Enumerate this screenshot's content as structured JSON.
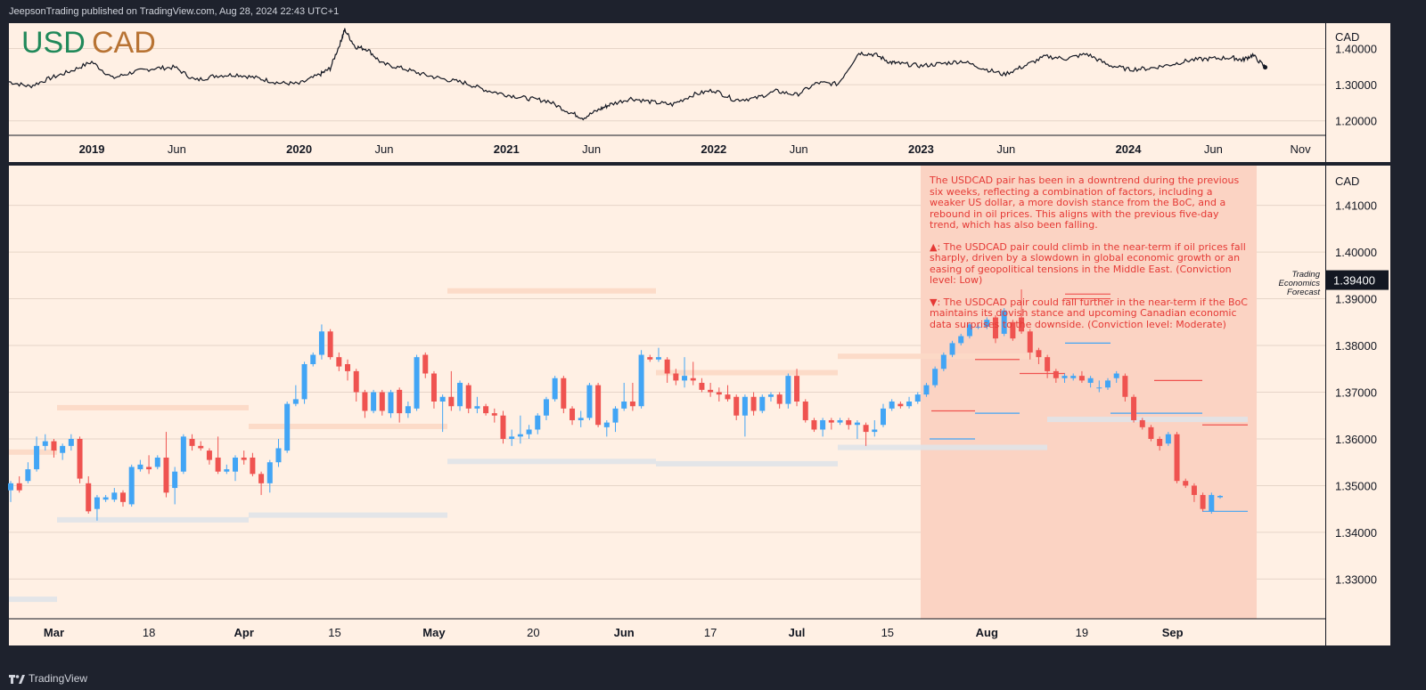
{
  "header": {
    "published_text": "JeepsonTrading published on TradingView.com, Aug 28, 2024 22:43 UTC+1"
  },
  "footer": {
    "brand": "TradingView"
  },
  "colors": {
    "panel_bg": "#fff0e4",
    "up": "#42a5f5",
    "down": "#ef5350",
    "accent_green": "#21895a",
    "accent_brown": "#b87333",
    "forecast_zone": "#fbd3c3",
    "note_text": "#e53935"
  },
  "chart_data": [
    {
      "type": "line",
      "title": "USD CAD",
      "title_parts": [
        "USD",
        "CAD"
      ],
      "currency_label": "CAD",
      "x_tick_labels": [
        "2019",
        "Jun",
        "2020",
        "Jun",
        "2021",
        "Jun",
        "2022",
        "Jun",
        "2023",
        "Jun",
        "2024",
        "Jun",
        "Nov"
      ],
      "y_tick_labels": [
        "1.40000",
        "1.30000",
        "1.20000"
      ],
      "ylim": [
        1.16,
        1.47
      ],
      "x": [
        2018.6,
        2018.7,
        2018.8,
        2018.9,
        2019.0,
        2019.1,
        2019.2,
        2019.3,
        2019.4,
        2019.5,
        2019.6,
        2019.7,
        2019.8,
        2019.9,
        2020.0,
        2020.1,
        2020.15,
        2020.2,
        2020.22,
        2020.27,
        2020.33,
        2020.4,
        2020.5,
        2020.6,
        2020.7,
        2020.8,
        2020.9,
        2021.0,
        2021.1,
        2021.2,
        2021.3,
        2021.37,
        2021.45,
        2021.5,
        2021.6,
        2021.7,
        2021.8,
        2021.9,
        2022.0,
        2022.1,
        2022.2,
        2022.3,
        2022.4,
        2022.5,
        2022.6,
        2022.7,
        2022.78,
        2022.85,
        2022.9,
        2023.0,
        2023.1,
        2023.2,
        2023.3,
        2023.4,
        2023.5,
        2023.6,
        2023.7,
        2023.8,
        2023.9,
        2024.0,
        2024.1,
        2024.2,
        2024.3,
        2024.4,
        2024.5,
        2024.55,
        2024.6,
        2024.66
      ],
      "values": [
        1.308,
        1.295,
        1.318,
        1.338,
        1.363,
        1.318,
        1.335,
        1.345,
        1.348,
        1.312,
        1.325,
        1.328,
        1.318,
        1.305,
        1.302,
        1.328,
        1.345,
        1.418,
        1.452,
        1.405,
        1.398,
        1.358,
        1.345,
        1.328,
        1.315,
        1.305,
        1.285,
        1.272,
        1.262,
        1.255,
        1.225,
        1.208,
        1.232,
        1.245,
        1.262,
        1.252,
        1.245,
        1.272,
        1.285,
        1.258,
        1.262,
        1.282,
        1.272,
        1.305,
        1.302,
        1.388,
        1.383,
        1.362,
        1.358,
        1.352,
        1.358,
        1.365,
        1.345,
        1.328,
        1.352,
        1.378,
        1.372,
        1.385,
        1.355,
        1.342,
        1.345,
        1.355,
        1.368,
        1.372,
        1.375,
        1.368,
        1.382,
        1.348
      ]
    },
    {
      "type": "candlestick",
      "currency_label": "CAD",
      "forecast_label": [
        "Trading",
        "Economics",
        "Forecast"
      ],
      "current_price_label": "1.39400",
      "current_price": 1.394,
      "x_tick_labels": [
        "Mar",
        "18",
        "Apr",
        "15",
        "May",
        "20",
        "Jun",
        "17",
        "Jul",
        "15",
        "Aug",
        "19",
        "Sep"
      ],
      "y_tick_labels": [
        "1.41000",
        "1.40000",
        "1.39000",
        "1.38000",
        "1.37000",
        "1.36000",
        "1.35000",
        "1.34000",
        "1.33000"
      ],
      "ylim": [
        1.3215,
        1.4185
      ],
      "candles": [
        [
          1.349,
          1.3505,
          1.3465,
          1.351
        ],
        [
          1.3505,
          1.349,
          1.3485,
          1.352
        ],
        [
          1.351,
          1.3535,
          1.3505,
          1.355
        ],
        [
          1.3535,
          1.3585,
          1.353,
          1.3605
        ],
        [
          1.3585,
          1.3595,
          1.3575,
          1.361
        ],
        [
          1.3595,
          1.3575,
          1.356,
          1.36
        ],
        [
          1.357,
          1.3585,
          1.3555,
          1.359
        ],
        [
          1.3585,
          1.36,
          1.3575,
          1.361
        ],
        [
          1.36,
          1.3515,
          1.3505,
          1.3605
        ],
        [
          1.3505,
          1.3445,
          1.344,
          1.352
        ],
        [
          1.345,
          1.3475,
          1.3425,
          1.348
        ],
        [
          1.347,
          1.3475,
          1.3465,
          1.348
        ],
        [
          1.347,
          1.3485,
          1.3465,
          1.3495
        ],
        [
          1.3485,
          1.3465,
          1.3455,
          1.349
        ],
        [
          1.346,
          1.354,
          1.3455,
          1.3545
        ],
        [
          1.3535,
          1.3545,
          1.353,
          1.3555
        ],
        [
          1.354,
          1.3535,
          1.3525,
          1.3565
        ],
        [
          1.354,
          1.356,
          1.3535,
          1.3565
        ],
        [
          1.356,
          1.3485,
          1.3475,
          1.3615
        ],
        [
          1.3495,
          1.353,
          1.346,
          1.354
        ],
        [
          1.353,
          1.3605,
          1.3525,
          1.361
        ],
        [
          1.36,
          1.3585,
          1.3575,
          1.361
        ],
        [
          1.3585,
          1.358,
          1.3575,
          1.3595
        ],
        [
          1.3575,
          1.3555,
          1.3545,
          1.358
        ],
        [
          1.356,
          1.353,
          1.3525,
          1.3605
        ],
        [
          1.353,
          1.3535,
          1.3525,
          1.3545
        ],
        [
          1.353,
          1.356,
          1.351,
          1.3565
        ],
        [
          1.356,
          1.3555,
          1.3545,
          1.3575
        ],
        [
          1.356,
          1.3525,
          1.352,
          1.357
        ],
        [
          1.3525,
          1.3505,
          1.348,
          1.353
        ],
        [
          1.3505,
          1.355,
          1.3485,
          1.3555
        ],
        [
          1.355,
          1.358,
          1.354,
          1.36
        ],
        [
          1.3575,
          1.3675,
          1.357,
          1.368
        ],
        [
          1.3675,
          1.3685,
          1.367,
          1.3715
        ],
        [
          1.3685,
          1.376,
          1.3675,
          1.3765
        ],
        [
          1.376,
          1.378,
          1.3755,
          1.3785
        ],
        [
          1.378,
          1.383,
          1.377,
          1.3845
        ],
        [
          1.383,
          1.3775,
          1.377,
          1.3835
        ],
        [
          1.3775,
          1.3755,
          1.3745,
          1.3785
        ],
        [
          1.376,
          1.3745,
          1.3725,
          1.377
        ],
        [
          1.3745,
          1.37,
          1.368,
          1.375
        ],
        [
          1.37,
          1.366,
          1.3645,
          1.3705
        ],
        [
          1.366,
          1.37,
          1.3655,
          1.3705
        ],
        [
          1.37,
          1.366,
          1.365,
          1.3705
        ],
        [
          1.3655,
          1.37,
          1.3645,
          1.3705
        ],
        [
          1.3705,
          1.3655,
          1.3635,
          1.371
        ],
        [
          1.3655,
          1.367,
          1.3645,
          1.368
        ],
        [
          1.3665,
          1.3775,
          1.366,
          1.378
        ],
        [
          1.378,
          1.374,
          1.373,
          1.3785
        ],
        [
          1.374,
          1.368,
          1.3665,
          1.3745
        ],
        [
          1.368,
          1.369,
          1.3615,
          1.3695
        ],
        [
          1.369,
          1.367,
          1.366,
          1.3745
        ],
        [
          1.367,
          1.372,
          1.366,
          1.3725
        ],
        [
          1.3715,
          1.3665,
          1.3655,
          1.372
        ],
        [
          1.3665,
          1.367,
          1.3655,
          1.369
        ],
        [
          1.367,
          1.3655,
          1.365,
          1.3675
        ],
        [
          1.3655,
          1.365,
          1.3635,
          1.3665
        ],
        [
          1.365,
          1.36,
          1.359,
          1.366
        ],
        [
          1.36,
          1.3605,
          1.3585,
          1.362
        ],
        [
          1.3605,
          1.361,
          1.359,
          1.365
        ],
        [
          1.361,
          1.362,
          1.36,
          1.363
        ],
        [
          1.362,
          1.365,
          1.361,
          1.3655
        ],
        [
          1.365,
          1.3685,
          1.364,
          1.369
        ],
        [
          1.3685,
          1.373,
          1.368,
          1.3735
        ],
        [
          1.373,
          1.3665,
          1.3655,
          1.3735
        ],
        [
          1.3665,
          1.364,
          1.363,
          1.367
        ],
        [
          1.364,
          1.3645,
          1.3625,
          1.366
        ],
        [
          1.3645,
          1.3715,
          1.364,
          1.372
        ],
        [
          1.3715,
          1.363,
          1.3625,
          1.372
        ],
        [
          1.3625,
          1.3635,
          1.3605,
          1.364
        ],
        [
          1.3635,
          1.3665,
          1.3615,
          1.367
        ],
        [
          1.3665,
          1.368,
          1.366,
          1.372
        ],
        [
          1.368,
          1.367,
          1.366,
          1.372
        ],
        [
          1.367,
          1.378,
          1.3665,
          1.379
        ],
        [
          1.3775,
          1.377,
          1.3765,
          1.378
        ],
        [
          1.377,
          1.3775,
          1.3765,
          1.3795
        ],
        [
          1.377,
          1.374,
          1.372,
          1.3775
        ],
        [
          1.374,
          1.3725,
          1.3715,
          1.375
        ],
        [
          1.3725,
          1.3735,
          1.371,
          1.3775
        ],
        [
          1.373,
          1.3725,
          1.3715,
          1.3765
        ],
        [
          1.372,
          1.3705,
          1.37,
          1.373
        ],
        [
          1.3705,
          1.37,
          1.369,
          1.372
        ],
        [
          1.37,
          1.3695,
          1.368,
          1.371
        ],
        [
          1.3695,
          1.3685,
          1.368,
          1.3715
        ],
        [
          1.369,
          1.365,
          1.364,
          1.3695
        ],
        [
          1.365,
          1.369,
          1.3605,
          1.3695
        ],
        [
          1.369,
          1.366,
          1.365,
          1.37
        ],
        [
          1.366,
          1.369,
          1.3655,
          1.3695
        ],
        [
          1.369,
          1.3695,
          1.368,
          1.37
        ],
        [
          1.3695,
          1.3675,
          1.3665,
          1.37
        ],
        [
          1.3675,
          1.3735,
          1.3665,
          1.374
        ],
        [
          1.3735,
          1.368,
          1.367,
          1.375
        ],
        [
          1.368,
          1.364,
          1.3635,
          1.3685
        ],
        [
          1.364,
          1.362,
          1.3615,
          1.3645
        ],
        [
          1.362,
          1.364,
          1.3605,
          1.3645
        ],
        [
          1.364,
          1.3635,
          1.362,
          1.3645
        ],
        [
          1.3635,
          1.364,
          1.363,
          1.3645
        ],
        [
          1.364,
          1.363,
          1.362,
          1.3645
        ],
        [
          1.363,
          1.3635,
          1.36,
          1.364
        ],
        [
          1.363,
          1.3615,
          1.3585,
          1.3635
        ],
        [
          1.3615,
          1.362,
          1.3605,
          1.364
        ],
        [
          1.363,
          1.3665,
          1.3625,
          1.3675
        ],
        [
          1.3665,
          1.368,
          1.366,
          1.3685
        ],
        [
          1.3675,
          1.367,
          1.3665,
          1.368
        ],
        [
          1.367,
          1.368,
          1.3665,
          1.369
        ],
        [
          1.368,
          1.3695,
          1.3675,
          1.37
        ],
        [
          1.3695,
          1.3715,
          1.369,
          1.372
        ],
        [
          1.3715,
          1.375,
          1.371,
          1.3755
        ],
        [
          1.375,
          1.378,
          1.3745,
          1.3785
        ],
        [
          1.378,
          1.3805,
          1.3775,
          1.381
        ],
        [
          1.3805,
          1.382,
          1.38,
          1.3825
        ],
        [
          1.382,
          1.3845,
          1.3815,
          1.385
        ],
        [
          1.384,
          1.384,
          1.3835,
          1.3845
        ],
        [
          1.384,
          1.3855,
          1.3835,
          1.386
        ],
        [
          1.386,
          1.3815,
          1.3805,
          1.3865
        ],
        [
          1.3825,
          1.3875,
          1.382,
          1.388
        ],
        [
          1.385,
          1.3815,
          1.381,
          1.3855
        ],
        [
          1.386,
          1.383,
          1.3825,
          1.392
        ],
        [
          1.383,
          1.3785,
          1.377,
          1.3835
        ],
        [
          1.379,
          1.3775,
          1.376,
          1.3795
        ],
        [
          1.3775,
          1.3745,
          1.373,
          1.378
        ],
        [
          1.3745,
          1.373,
          1.372,
          1.375
        ],
        [
          1.373,
          1.3735,
          1.372,
          1.374
        ],
        [
          1.373,
          1.3735,
          1.3725,
          1.374
        ],
        [
          1.3735,
          1.3725,
          1.372,
          1.3745
        ],
        [
          1.372,
          1.373,
          1.371,
          1.3735
        ],
        [
          1.371,
          1.371,
          1.37,
          1.3725
        ],
        [
          1.371,
          1.3725,
          1.3705,
          1.373
        ],
        [
          1.373,
          1.374,
          1.372,
          1.3745
        ],
        [
          1.3735,
          1.369,
          1.368,
          1.374
        ],
        [
          1.369,
          1.364,
          1.3635,
          1.3695
        ],
        [
          1.364,
          1.3625,
          1.362,
          1.3645
        ],
        [
          1.3625,
          1.36,
          1.3595,
          1.363
        ],
        [
          1.36,
          1.3585,
          1.3575,
          1.3605
        ],
        [
          1.359,
          1.361,
          1.3585,
          1.3615
        ],
        [
          1.361,
          1.351,
          1.3505,
          1.3615
        ],
        [
          1.351,
          1.35,
          1.3495,
          1.3515
        ],
        [
          1.35,
          1.348,
          1.3465,
          1.3505
        ],
        [
          1.348,
          1.345,
          1.3445,
          1.3485
        ],
        [
          1.3445,
          1.348,
          1.344,
          1.3485
        ],
        [
          1.3475,
          1.3478,
          1.3472,
          1.348
        ]
      ],
      "gray_zones": [
        [
          1.34275,
          1.34325
        ],
        [
          1.34375,
          1.34425
        ],
        [
          1.35525,
          1.35575
        ],
        [
          1.35475,
          1.35525
        ],
        [
          1.35825,
          1.35875
        ],
        [
          1.36425,
          1.36475
        ],
        [
          1.32575,
          1.32625
        ]
      ],
      "salmon_zones": [
        [
          1.36675,
          1.36725
        ],
        [
          1.36275,
          1.36325
        ],
        [
          1.39175,
          1.39225
        ],
        [
          1.37425,
          1.37475
        ],
        [
          1.37775,
          1.37825
        ],
        [
          1.35725,
          1.35775
        ]
      ],
      "forecast_lines": [
        1.366,
        1.3655,
        1.36,
        1.374,
        1.377,
        1.3805,
        1.39,
        1.3725,
        1.3655,
        1.363,
        1.3445,
        1.391
      ],
      "forecast_line_colors": [
        "down",
        "up",
        "up",
        "down",
        "down",
        "up",
        "down",
        "down",
        "up",
        "down",
        "up",
        "down"
      ],
      "note": {
        "paragraph1": "The USDCAD pair has been in a downtrend during the previous six weeks, reflecting a combination of factors, including a weaker US dollar, a more dovish stance from the BoC, and a rebound in oil prices. This aligns with the previous five-day trend, which has also been falling.",
        "paragraph2": "▲: The USDCAD pair could climb in the near-term if oil prices fall sharply, driven by a slowdown in global economic growth or an easing of geopolitical tensions in the Middle East. (Conviction level: Low)",
        "paragraph3": "▼: The USDCAD pair could fall further in the near-term if the BoC maintains its dovish stance and upcoming Canadian economic data surprises to the downside. (Conviction level: Moderate)"
      }
    }
  ]
}
